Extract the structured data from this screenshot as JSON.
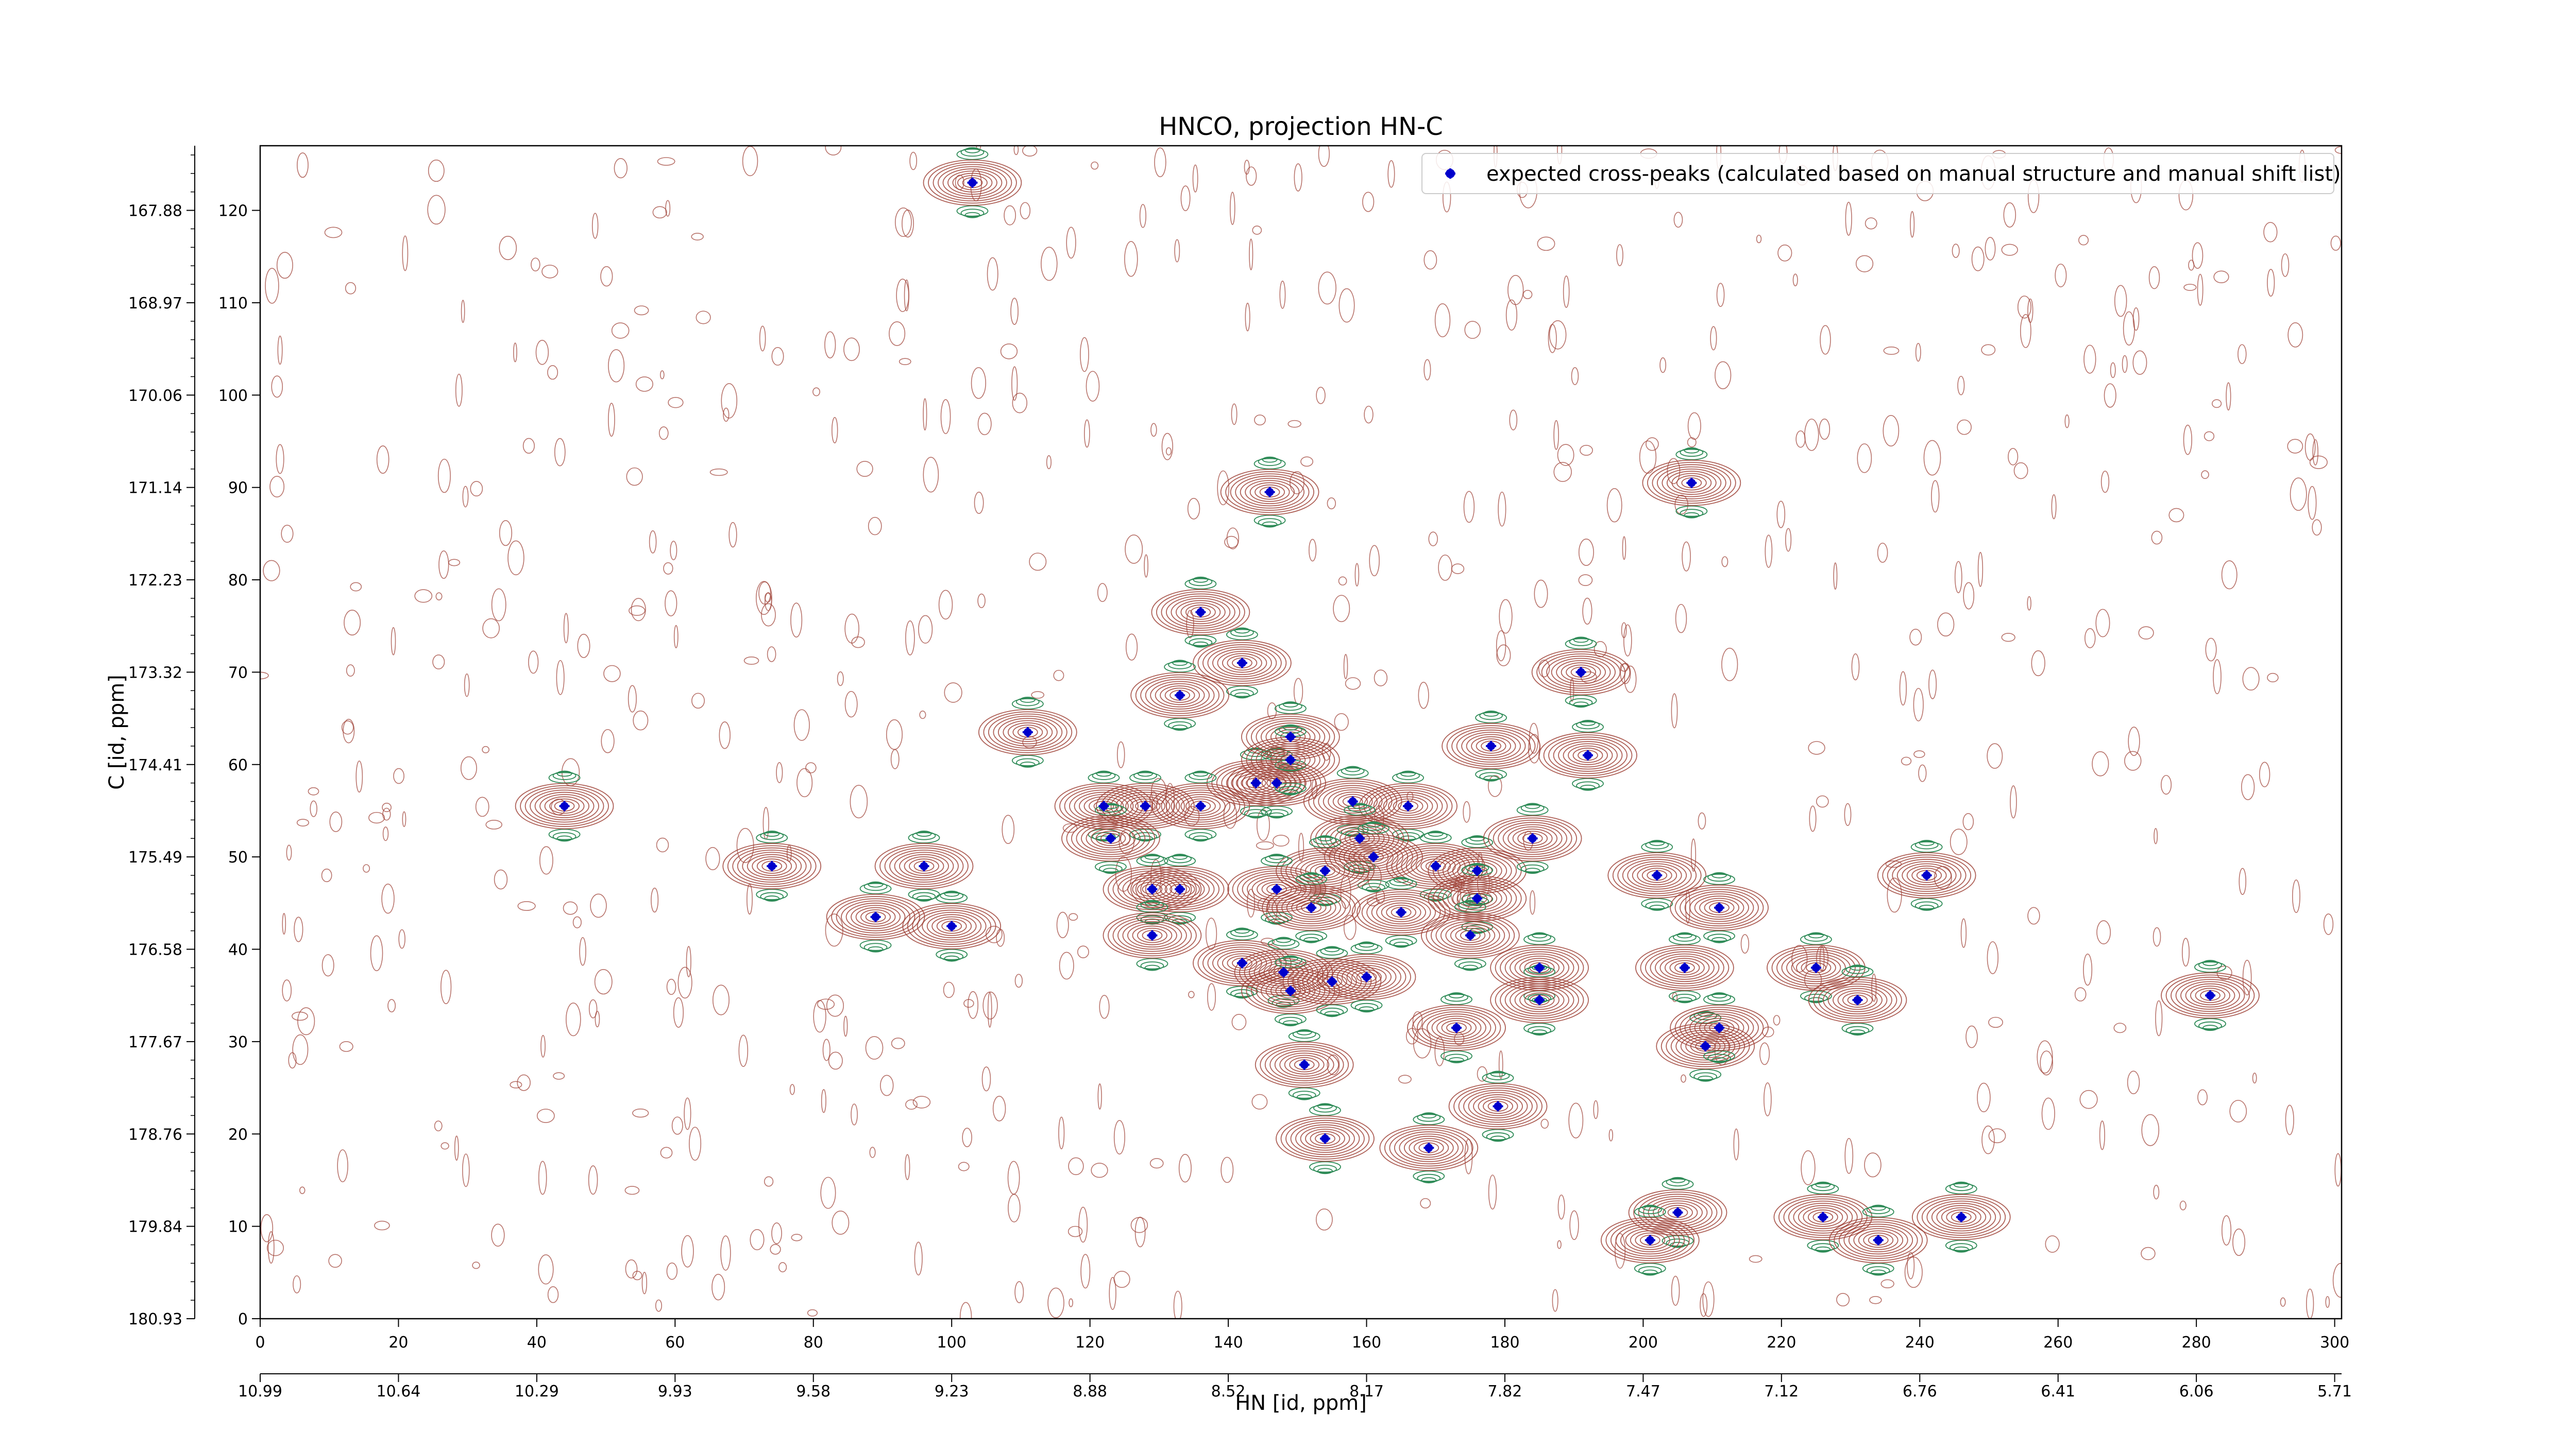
{
  "chart_data": {
    "type": "scatter",
    "title": "HNCO, projection HN-C",
    "xlabel": "HN [id, ppm]",
    "ylabel": "C [id, ppm]",
    "x_index_range": [
      0,
      301
    ],
    "y_index_range": [
      0,
      127
    ],
    "x_index_ticks": [
      "0",
      "20",
      "40",
      "60",
      "80",
      "100",
      "120",
      "140",
      "160",
      "180",
      "200",
      "220",
      "240",
      "260",
      "280",
      "300"
    ],
    "x_ppm_ticks": [
      "10.99",
      "10.64",
      "10.29",
      "9.93",
      "9.58",
      "9.23",
      "8.88",
      "8.52",
      "8.17",
      "7.82",
      "7.47",
      "7.12",
      "6.76",
      "6.41",
      "6.06",
      "5.71"
    ],
    "y_index_ticks": [
      "0",
      "10",
      "20",
      "30",
      "40",
      "50",
      "60",
      "70",
      "80",
      "90",
      "100",
      "110",
      "120"
    ],
    "y_ppm_ticks": [
      "180.93",
      "179.84",
      "178.76",
      "177.67",
      "176.58",
      "175.49",
      "174.41",
      "173.32",
      "172.23",
      "171.14",
      "170.06",
      "168.97",
      "167.88"
    ],
    "legend": {
      "label": "expected cross-peaks (calculated based on manual structure and manual shift list)",
      "position": "top-right"
    },
    "colors": {
      "positive_contour": "#a0443a",
      "negative_contour": "#2e8b57",
      "marker": "#0000cc"
    },
    "series": [
      {
        "name": "expected cross-peaks (calculated based on manual structure and manual shift list)",
        "points": [
          [
            103,
            123
          ],
          [
            146,
            89.5
          ],
          [
            207,
            90.5
          ],
          [
            136,
            76.5
          ],
          [
            142,
            71
          ],
          [
            133,
            67.5
          ],
          [
            191,
            70
          ],
          [
            111,
            63.5
          ],
          [
            144,
            58
          ],
          [
            147,
            58
          ],
          [
            149,
            63
          ],
          [
            149,
            60.5
          ],
          [
            178,
            62
          ],
          [
            192,
            61
          ],
          [
            44,
            55.5
          ],
          [
            122,
            55.5
          ],
          [
            128,
            55.5
          ],
          [
            136,
            55.5
          ],
          [
            158,
            56
          ],
          [
            166,
            55.5
          ],
          [
            123,
            52
          ],
          [
            159,
            52
          ],
          [
            161,
            50
          ],
          [
            74,
            49
          ],
          [
            96,
            49
          ],
          [
            154,
            48.5
          ],
          [
            170,
            49
          ],
          [
            176,
            48.5
          ],
          [
            184,
            52
          ],
          [
            202,
            48
          ],
          [
            241,
            48
          ],
          [
            89,
            43.5
          ],
          [
            100,
            42.5
          ],
          [
            129,
            46.5
          ],
          [
            133,
            46.5
          ],
          [
            147,
            46.5
          ],
          [
            152,
            44.5
          ],
          [
            165,
            44
          ],
          [
            176,
            45.5
          ],
          [
            211,
            44.5
          ],
          [
            129,
            41.5
          ],
          [
            175,
            41.5
          ],
          [
            142,
            38.5
          ],
          [
            148,
            37.5
          ],
          [
            149,
            35.5
          ],
          [
            155,
            36.5
          ],
          [
            160,
            37
          ],
          [
            185,
            38
          ],
          [
            206,
            38
          ],
          [
            225,
            38
          ],
          [
            185,
            34.5
          ],
          [
            231,
            34.5
          ],
          [
            282,
            35
          ],
          [
            173,
            31.5
          ],
          [
            209,
            29.5
          ],
          [
            211,
            31.5
          ],
          [
            151,
            27.5
          ],
          [
            179,
            23
          ],
          [
            154,
            19.5
          ],
          [
            169,
            18.5
          ],
          [
            205,
            11.5
          ],
          [
            226,
            11
          ],
          [
            234,
            8.5
          ],
          [
            246,
            11
          ],
          [
            201,
            8.5
          ]
        ]
      }
    ]
  }
}
